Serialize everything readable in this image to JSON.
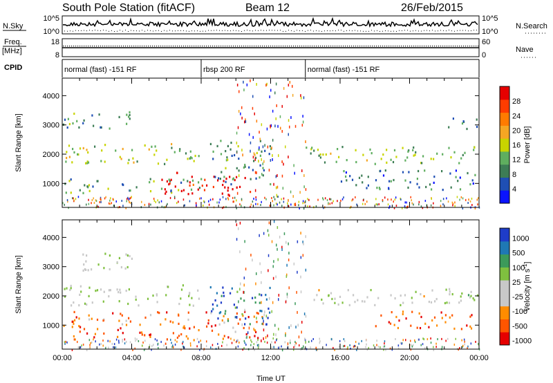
{
  "header": {
    "title": "South Pole Station (fitACF)",
    "beam": "Beam 12",
    "date": "26/Feb/2015"
  },
  "strips": {
    "nsky_label": "N.Sky",
    "nsky_ticks": [
      "10^5",
      "10^0"
    ],
    "nsearch_label": "N.Search",
    "nsearch_ticks": [
      "10^5",
      "10^0"
    ],
    "freq_label_1": "Freq.",
    "freq_label_2": "[MHz]",
    "freq_ticks": [
      "18",
      "8"
    ],
    "nave_label": "Nave",
    "nave_ticks": [
      "60",
      "0"
    ],
    "cpid_label": "CPID",
    "cpid_segments": [
      {
        "text": "normal (fast) -151 RF",
        "start_h": 0,
        "end_h": 8
      },
      {
        "text": "rbsp 200 RF",
        "start_h": 8,
        "end_h": 14
      },
      {
        "text": "normal (fast) -151 RF",
        "start_h": 14,
        "end_h": 24
      }
    ]
  },
  "colors": {
    "power_scale": [
      "#0a14ff",
      "#1f4fb4",
      "#3d7d55",
      "#5fae5f",
      "#c8d400",
      "#f5a623",
      "#ff7b00",
      "#ff3c00",
      "#e60000"
    ],
    "velocity_scale": [
      "#1e3cc8",
      "#1f78b4",
      "#3c9a5a",
      "#7fc03f",
      "#c8c8c8",
      "#c8c8c8",
      "#ff8c00",
      "#ff5500",
      "#e60000"
    ]
  },
  "chart_data": [
    {
      "type": "heatmap",
      "name_label": "Power",
      "xlabel": "Time UT",
      "ylabel": "Slant Range [km]",
      "xlim": [
        0,
        24
      ],
      "ylim": [
        180,
        4600
      ],
      "x_ticks": [
        "00:00",
        "04:00",
        "08:00",
        "12:00",
        "16:00",
        "20:00",
        "00:00"
      ],
      "y_ticks": [
        1000,
        2000,
        3000,
        4000
      ],
      "colorbar_label": "Power [dB]",
      "colorbar_ticks": [
        "4",
        "8",
        "12",
        "16",
        "20",
        "24",
        "28"
      ],
      "bands": [
        {
          "t0": 0.0,
          "t1": 8.0,
          "r0": 1700,
          "r1": 2400,
          "level": 0.45
        },
        {
          "t0": 14.0,
          "t1": 24.0,
          "r0": 1700,
          "r1": 2300,
          "level": 0.4
        },
        {
          "t0": 0.0,
          "t1": 4.0,
          "r0": 2900,
          "r1": 3500,
          "level": 0.3
        },
        {
          "t0": 22.0,
          "t1": 24.0,
          "r0": 2900,
          "r1": 3300,
          "level": 0.3
        },
        {
          "t0": 0.0,
          "t1": 8.0,
          "r0": 700,
          "r1": 1200,
          "level": 0.35
        },
        {
          "t0": 5.5,
          "t1": 11.0,
          "r0": 600,
          "r1": 1400,
          "level": 0.95
        },
        {
          "t0": 8.5,
          "t1": 12.0,
          "r0": 1000,
          "r1": 2500,
          "level": 0.3
        },
        {
          "t0": 16.0,
          "t1": 24.0,
          "r0": 800,
          "r1": 1500,
          "level": 0.25
        }
      ]
    },
    {
      "type": "heatmap",
      "name_label": "Velocity",
      "xlabel": "Time UT",
      "ylabel": "Slant Range [km]",
      "xlim": [
        0,
        24
      ],
      "ylim": [
        180,
        4600
      ],
      "x_ticks": [
        "00:00",
        "04:00",
        "08:00",
        "12:00",
        "16:00",
        "20:00",
        "00:00"
      ],
      "y_ticks": [
        1000,
        2000,
        3000,
        4000
      ],
      "colorbar_label": "Velocity [m s",
      "colorbar_unit_sup": "-1",
      "colorbar_unit_close": "]",
      "colorbar_ticks": [
        "1000",
        "500",
        "100",
        "25",
        "-25",
        "-100",
        "-500",
        "-1000"
      ],
      "bands": [
        {
          "t0": 0.0,
          "t1": 8.0,
          "r0": 1700,
          "r1": 2400,
          "level": 0.5
        },
        {
          "t0": 14.0,
          "t1": 24.0,
          "r0": 1700,
          "r1": 2300,
          "level": 0.5
        },
        {
          "t0": 0.0,
          "t1": 4.0,
          "r0": 2900,
          "r1": 3500,
          "level": 0.5
        },
        {
          "t0": 0.0,
          "t1": 11.5,
          "r0": 500,
          "r1": 1500,
          "level": 0.8
        },
        {
          "t0": 8.5,
          "t1": 12.0,
          "r0": 1000,
          "r1": 2400,
          "level": 0.2
        },
        {
          "t0": 18.0,
          "t1": 24.0,
          "r0": 900,
          "r1": 1500,
          "level": 0.85
        }
      ]
    }
  ]
}
